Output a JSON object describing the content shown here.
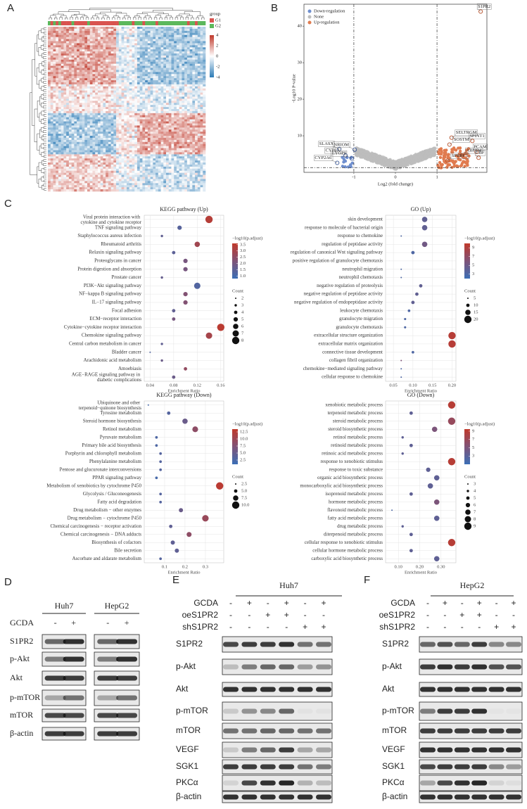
{
  "panel_labels": [
    "A",
    "B",
    "C",
    "D",
    "E",
    "F"
  ],
  "heatmap": {
    "legend_title": "group",
    "groups": [
      "G1",
      "G2"
    ],
    "scale_ticks": [
      4,
      2,
      0,
      -2,
      -4
    ]
  },
  "volcano": {
    "y_label": "-Log10 P-value",
    "x_label": "Log2 (fold change)",
    "legend": [
      "Down-regulation",
      "None",
      "Up-regulation"
    ],
    "xlim": [
      -2.2,
      2.2
    ],
    "ylim": [
      0,
      46
    ],
    "xticks": [
      -1,
      0,
      1
    ],
    "yticks": [
      10,
      20,
      30,
      40
    ],
    "genes": [
      {
        "name": "S1PR2",
        "x": 2.05,
        "y": 44
      },
      {
        "name": "SELTRGM",
        "x": 1.35,
        "y": 9.5
      },
      {
        "name": "SPINT1",
        "x": 1.85,
        "y": 8.6
      },
      {
        "name": "SOSTM",
        "x": 1.3,
        "y": 7.6
      },
      {
        "name": "PCAM",
        "x": 1.95,
        "y": 5.6
      },
      {
        "name": "ABHD4",
        "x": 1.6,
        "y": 4.6
      },
      {
        "name": "CBF",
        "x": 2.0,
        "y": 4.0
      },
      {
        "name": "SPRRC1",
        "x": 1.25,
        "y": 3.2
      },
      {
        "name": "SLASX",
        "x": -1.35,
        "y": 6.4
      },
      {
        "name": "NRIOM",
        "x": -0.98,
        "y": 6.2
      },
      {
        "name": "CYP8A",
        "x": -1.2,
        "y": 4.6
      },
      {
        "name": "EYGP8",
        "x": -1.05,
        "y": 3.8
      },
      {
        "name": "CYP2A6",
        "x": -1.4,
        "y": 2.6
      }
    ]
  },
  "chart_data": [
    {
      "type": "dot",
      "title": "KEGG pathway (Up)",
      "x_label": "Enrichment Ratio",
      "categories": [
        "Viral protein interaction with cytokine and cytokine receptor",
        "TNF signaling pathway",
        "Staphylococcus aureus infection",
        "Rheumatoid arthritis",
        "Relaxin signaling pathway",
        "Proteoglycans in cancer",
        "Protein digestion and absorption",
        "Prostate cancer",
        "PI3K−Akt signaling pathway",
        "NF−kappa B signaling pathway",
        "IL−17 signaling pathway",
        "Focal adhesion",
        "ECM−receptor interaction",
        "Cytokine−cytokine receptor interaction",
        "Chemokine signaling pathway",
        "Central carbon metabolism in cancer",
        "Bladder cancer",
        "Arachidonic acid metabolism",
        "Amoebiasis",
        "AGE−RAGE signaling pathway in diabetic complications"
      ],
      "values": [
        0.14,
        0.09,
        0.06,
        0.12,
        0.08,
        0.1,
        0.1,
        0.06,
        0.12,
        0.1,
        0.1,
        0.08,
        0.08,
        0.16,
        0.14,
        0.06,
        0.04,
        0.06,
        0.1,
        0.08
      ],
      "counts": [
        8,
        5,
        3,
        6,
        4,
        5,
        5,
        3,
        7,
        5,
        5,
        4,
        4,
        8,
        7,
        3,
        2,
        3,
        4,
        4
      ],
      "padj": [
        3.4,
        1.3,
        1.5,
        3.0,
        1.4,
        2.0,
        2.0,
        1.6,
        1.2,
        2.3,
        2.3,
        1.5,
        2.0,
        3.5,
        3.1,
        1.5,
        1.2,
        1.7,
        2.7,
        1.7
      ],
      "xlim": [
        0.03,
        0.165
      ],
      "xticks": [
        0.04,
        0.08,
        0.12,
        0.16
      ],
      "color_label": "−log10(p.adjust)",
      "clim": [
        0.8,
        3.6
      ],
      "color_ticks": [
        {
          "value": 3.5,
          "label": "3.5"
        },
        {
          "value": 3.0,
          "label": "3.0"
        },
        {
          "value": 2.5,
          "label": "2.5"
        },
        {
          "value": 2.0,
          "label": "2.0"
        },
        {
          "value": 1.5,
          "label": "1.5"
        },
        {
          "value": 1.0,
          "label": "1.0"
        }
      ],
      "size_label": "Count",
      "size_ticks": [
        2,
        3,
        4,
        5,
        6,
        7,
        8
      ],
      "colorscale": [
        "#3b6fb6",
        "#c0392b"
      ],
      "grid": true
    },
    {
      "type": "dot",
      "title": "GO (Up)",
      "x_label": "Enrichment Ratio",
      "categories": [
        "skin development",
        "response to molecule of bacterial origin",
        "response to chemokine",
        "regulation of peptidase activity",
        "regulation of canonical Wnt signaling pathway",
        "positive regulation of granulocyte chemotaxis",
        "neutrophil migration",
        "neutrophil chemotaxis",
        "negative regulation of proteolysis",
        "negative regulation of peptidase activity",
        "negative regulation of endopeptidase activity",
        "leukocyte chemotaxis",
        "granulocyte migration",
        "granulocyte chemotaxis",
        "extracellular structure organization",
        "extracellular matrix organization",
        "connective tissue development",
        "collagen fibril organization",
        "chemokine−mediated signaling pathway",
        "cellular response to chemokine"
      ],
      "values": [
        0.13,
        0.13,
        0.07,
        0.13,
        0.1,
        0.04,
        0.07,
        0.07,
        0.12,
        0.11,
        0.1,
        0.09,
        0.08,
        0.08,
        0.2,
        0.2,
        0.1,
        0.07,
        0.07,
        0.07
      ],
      "counts": [
        15,
        15,
        5,
        15,
        10,
        2,
        5,
        5,
        10,
        10,
        10,
        8,
        7,
        7,
        20,
        20,
        8,
        5,
        5,
        5
      ],
      "padj": [
        4,
        4,
        3,
        5,
        3,
        3,
        3,
        3,
        4,
        4,
        4,
        3,
        3,
        3,
        9.5,
        9.5,
        3,
        6,
        3,
        3
      ],
      "xlim": [
        0.03,
        0.21
      ],
      "xticks": [
        0.05,
        {
          "value": 0.1,
          "label": "0.10"
        },
        0.15,
        {
          "value": 0.2,
          "label": "0.20"
        }
      ],
      "color_label": "−log10(p.adjust)",
      "clim": [
        2,
        10
      ],
      "color_ticks": [
        9,
        7,
        5,
        3
      ],
      "size_label": "Count",
      "size_ticks": [
        5,
        10,
        15,
        20
      ],
      "colorscale": [
        "#3b6fb6",
        "#c0392b"
      ],
      "grid": true
    },
    {
      "type": "dot",
      "title": "KEGG pathway (Down)",
      "x_label": "Enrichment Ratio",
      "categories": [
        "Ubiquinone and other terpenoid−quinone biosynthesis",
        "Tyrosine metabolism",
        "Steroid hormone biosynthesis",
        "Retinol metabolism",
        "Pyruvate metabolism",
        "Primary bile acid biosynthesis",
        "Porphyrin and chlorophyll metabolism",
        "Phenylalanine metabolism",
        "Pentose and glucuronate interconversions",
        "PPAR signaling pathway",
        "Metabolism of xenobiotics by cytochrome P450",
        "Glycolysis / Gluconeogenesis",
        "Fatty acid degradation",
        "Drug metabolism − other enzymes",
        "Drug metabolism − cytochrome P450",
        "Chemical carcinogenesis − receptor activation",
        "Chemical carcinogenesis − DNA adducts",
        "Biosynthesis of cofactors",
        "Bile secretion",
        "Ascorbate and aldarate metabolism"
      ],
      "values": [
        0.02,
        0.12,
        0.2,
        0.25,
        0.06,
        0.06,
        0.08,
        0.08,
        0.08,
        0.06,
        0.37,
        0.08,
        0.08,
        0.18,
        0.3,
        0.13,
        0.22,
        0.14,
        0.16,
        0.08
      ],
      "counts": [
        2.5,
        5,
        7.5,
        8,
        4,
        4,
        4,
        4,
        4,
        4,
        10,
        4,
        4,
        6,
        9,
        5,
        7,
        6,
        6,
        4
      ],
      "padj": [
        2,
        3,
        5,
        9,
        2.5,
        2.5,
        3,
        3,
        3,
        2,
        13,
        3,
        3,
        5,
        10,
        4,
        9,
        4,
        4,
        3
      ],
      "xlim": [
        0.0,
        0.39
      ],
      "xticks": [
        0.1,
        0.2,
        0.3
      ],
      "color_label": "−log10(p.adjust)",
      "clim": [
        1,
        13.5
      ],
      "color_ticks": [
        12.5,
        {
          "value": 10,
          "label": "10.0"
        },
        7.5,
        {
          "value": 5,
          "label": "5.0"
        },
        2.5
      ],
      "size_label": "Count",
      "size_ticks": [
        2.5,
        {
          "value": 5,
          "label": "5.0"
        },
        7.5,
        {
          "value": 10,
          "label": "10.0"
        }
      ],
      "colorscale": [
        "#3b6fb6",
        "#c0392b"
      ],
      "grid": true
    },
    {
      "type": "dot",
      "title": "GO (Down)",
      "x_label": "Enrichment Ratio",
      "categories": [
        "xenobiotic metabolic process",
        "terpenoid metabolic process",
        "steroid metabolic process",
        "steroid biosynthetic process",
        "retinol metabolic process",
        "retinoid metabolic process",
        "retinoic acid metabolic process",
        "response to xenobiotic stimulus",
        "response to toxic substance",
        "organic acid biosynthetic process",
        "monocarboxylic acid biosynthetic process",
        "isoprenoid metabolic process",
        "hormone metabolic process",
        "flavonoid metabolic process",
        "fatty acid metabolic process",
        "drug metabolic process",
        "diterpenoid metabolic process",
        "cellular response to xenobiotic stimulus",
        "cellular hormone metabolic process",
        "carboxylic acid biosynthetic process"
      ],
      "values": [
        0.35,
        0.16,
        0.35,
        0.27,
        0.12,
        0.16,
        0.12,
        0.35,
        0.24,
        0.28,
        0.25,
        0.16,
        0.28,
        0.07,
        0.28,
        0.12,
        0.16,
        0.35,
        0.16,
        0.28
      ],
      "counts": [
        9,
        5,
        9,
        7,
        4,
        5,
        4,
        9,
        6,
        7,
        7,
        5,
        7,
        3,
        7,
        4,
        5,
        9,
        5,
        7
      ],
      "padj": [
        9,
        3,
        7,
        5,
        3,
        3,
        3,
        9,
        3,
        3,
        3,
        3,
        5,
        2,
        3,
        3,
        3,
        9,
        3,
        3
      ],
      "xlim": [
        0.04,
        0.37
      ],
      "xticks": [
        {
          "value": 0.1,
          "label": "0.10"
        },
        {
          "value": 0.2,
          "label": "0.20"
        },
        {
          "value": 0.3,
          "label": "0.30"
        }
      ],
      "color_label": "−log10(p.adjust)",
      "clim": [
        1,
        9.5
      ],
      "color_ticks": [
        9,
        7,
        5,
        3
      ],
      "size_label": "Count",
      "size_ticks": [
        3,
        4,
        5,
        6,
        7,
        8,
        9
      ],
      "colorscale": [
        "#3b6fb6",
        "#c0392b"
      ],
      "grid": true
    }
  ],
  "blot_D": {
    "cell_lines": [
      "Huh7",
      "HepG2"
    ],
    "treatment": "GCDA",
    "signs": [
      "-",
      "+"
    ],
    "rows": [
      "S1PR2",
      "p-Akt",
      "Akt",
      "p-mTOR",
      "mTOR",
      "β-actin"
    ]
  },
  "blot_E": {
    "title": "Huh7",
    "conditions": [
      {
        "name": "GCDA",
        "signs": [
          "-",
          "+",
          "-",
          "+",
          "-",
          "+"
        ]
      },
      {
        "name": "oeS1PR2",
        "signs": [
          "-",
          "-",
          "+",
          "+",
          "-",
          "-"
        ]
      },
      {
        "name": "shS1PR2",
        "signs": [
          "-",
          "-",
          "-",
          "-",
          "+",
          "+"
        ]
      }
    ],
    "rows": [
      "S1PR2",
      "p-Akt",
      "Akt",
      "p-mTOR",
      "mTOR",
      "VEGF",
      "SGK1",
      "PKCα",
      "β-actin"
    ]
  },
  "blot_F": {
    "title": "HepG2",
    "conditions": [
      {
        "name": "GCDA",
        "signs": [
          "-",
          "+",
          "-",
          "+",
          "-",
          "+"
        ]
      },
      {
        "name": "oeS1PR2",
        "signs": [
          "-",
          "-",
          "+",
          "+",
          "-",
          "-"
        ]
      },
      {
        "name": "shS1PR2",
        "signs": [
          "-",
          "-",
          "-",
          "-",
          "+",
          "+"
        ]
      }
    ],
    "rows": [
      "S1PR2",
      "p-Akt",
      "Akt",
      "p-mTOR",
      "mTOR",
      "VEGF",
      "SGK1",
      "PKCα",
      "β-actin"
    ]
  }
}
